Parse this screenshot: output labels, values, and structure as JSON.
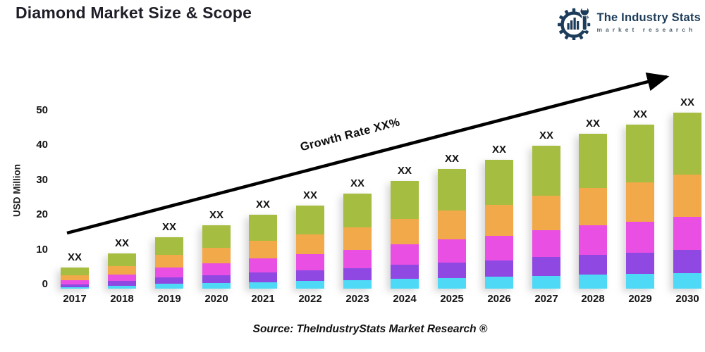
{
  "header": {
    "title": "Diamond Market Size & Scope",
    "logo": {
      "icon": "gear-wrench-bars-icon",
      "name": "The Industry Stats",
      "tagline": "market research",
      "color": "#1d3c59"
    }
  },
  "chart_data": {
    "type": "bar",
    "stacked": true,
    "title": "Diamond Market Size & Scope",
    "xlabel": "",
    "ylabel": "USD Million",
    "ylim": [
      0,
      50
    ],
    "yticks": [
      0,
      10,
      20,
      30,
      40,
      50
    ],
    "grid": false,
    "legend": "none",
    "bar_value_label": "XX",
    "categories": [
      "2017",
      "2018",
      "2019",
      "2020",
      "2021",
      "2022",
      "2023",
      "2024",
      "2025",
      "2026",
      "2027",
      "2028",
      "2029",
      "2030"
    ],
    "totals": [
      6,
      10,
      14.5,
      18,
      21,
      23.5,
      27,
      30.5,
      34,
      36.5,
      40.5,
      44,
      46.5,
      50
    ],
    "series": [
      {
        "name": "cyan-segment",
        "color": "#4ed9f6",
        "values": [
          0.5,
          0.9,
          1.3,
          1.6,
          1.9,
          2.1,
          2.4,
          2.7,
          3.1,
          3.3,
          3.6,
          4.0,
          4.2,
          4.5
        ]
      },
      {
        "name": "purple-segment",
        "color": "#8f49e2",
        "values": [
          0.8,
          1.3,
          1.9,
          2.3,
          2.7,
          3.1,
          3.5,
          4.0,
          4.4,
          4.7,
          5.3,
          5.7,
          6.0,
          6.5
        ]
      },
      {
        "name": "magenta-segment",
        "color": "#e94fe3",
        "values": [
          1.1,
          1.9,
          2.8,
          3.4,
          4.0,
          4.5,
          5.1,
          5.8,
          6.5,
          6.9,
          7.7,
          8.4,
          8.8,
          9.5
        ]
      },
      {
        "name": "orange-segment",
        "color": "#f2a94a",
        "values": [
          1.4,
          2.4,
          3.5,
          4.3,
          5.0,
          5.6,
          6.5,
          7.3,
          8.2,
          8.8,
          9.7,
          10.6,
          11.2,
          12.0
        ]
      },
      {
        "name": "green-segment",
        "color": "#a5bd40",
        "values": [
          2.2,
          3.5,
          5.0,
          6.4,
          7.4,
          8.2,
          9.5,
          10.7,
          11.8,
          12.8,
          14.2,
          15.3,
          16.3,
          17.5
        ]
      }
    ],
    "annotation": {
      "label": "Growth Rate XX%",
      "arrow_color": "#000000"
    }
  },
  "footer": {
    "source": "Source: TheIndustryStats Market Research ®"
  }
}
